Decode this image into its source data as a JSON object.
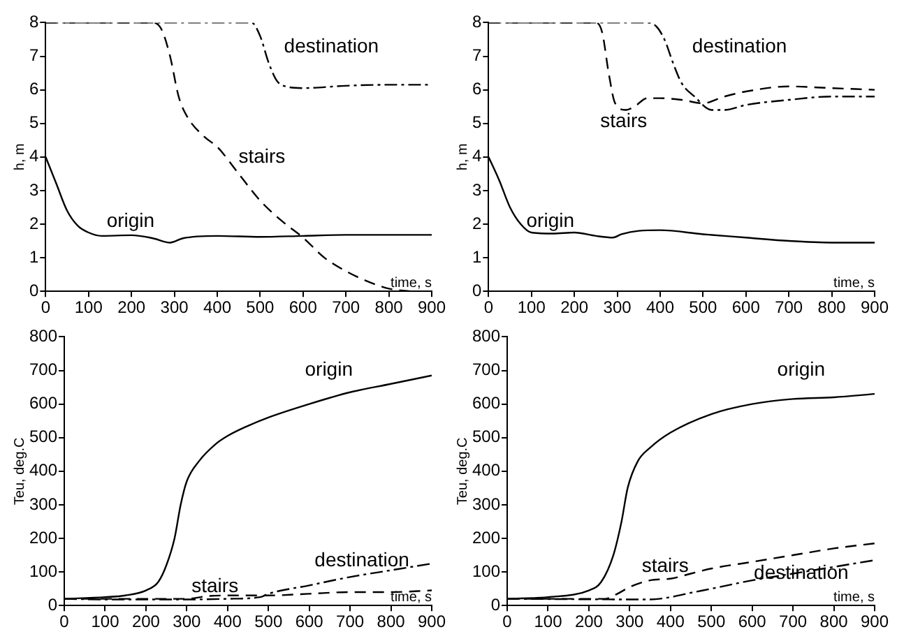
{
  "chart_data": [
    {
      "type": "line",
      "xlabel": "time, s",
      "ylabel": "h, m",
      "xlim": [
        0,
        900
      ],
      "xticks": [
        0,
        100,
        200,
        300,
        400,
        500,
        600,
        700,
        800,
        900
      ],
      "ylim": [
        0,
        8
      ],
      "yticks": [
        0,
        1,
        2,
        3,
        4,
        5,
        6,
        7,
        8
      ],
      "grid": false,
      "legend": false,
      "marker": "none",
      "series": [
        {
          "name": "origin",
          "color": "#000000",
          "line_style": "solid",
          "x": [
            0,
            25,
            50,
            75,
            100,
            130,
            200,
            250,
            290,
            320,
            400,
            500,
            600,
            700,
            900
          ],
          "values": [
            4,
            3.2,
            2.4,
            1.95,
            1.75,
            1.65,
            1.67,
            1.58,
            1.45,
            1.58,
            1.65,
            1.62,
            1.65,
            1.68,
            1.68
          ]
        },
        {
          "name": "stairs",
          "color": "#000000",
          "line_style": "dashed",
          "x": [
            0,
            250,
            270,
            290,
            310,
            330,
            370,
            400,
            450,
            500,
            550,
            600,
            650,
            700,
            750,
            800,
            850
          ],
          "values": [
            8,
            8,
            7.8,
            7,
            5.8,
            5.2,
            4.6,
            4.3,
            3.5,
            2.7,
            2.1,
            1.6,
            1,
            0.6,
            0.3,
            0.08,
            0
          ]
        },
        {
          "name": "destination",
          "color": "#000000",
          "line_style": "dotted",
          "x": [
            0,
            480,
            500,
            520,
            540,
            560,
            600,
            700,
            800,
            900
          ],
          "values": [
            8,
            8,
            7.6,
            6.8,
            6.25,
            6.1,
            6.05,
            6.12,
            6.15,
            6.15
          ]
        }
      ]
    },
    {
      "type": "line",
      "xlabel": "time, s",
      "ylabel": "h, m",
      "xlim": [
        0,
        900
      ],
      "xticks": [
        0,
        100,
        200,
        300,
        400,
        500,
        600,
        700,
        800,
        900
      ],
      "ylim": [
        0,
        8
      ],
      "yticks": [
        0,
        1,
        2,
        3,
        4,
        5,
        6,
        7,
        8
      ],
      "grid": false,
      "legend": false,
      "marker": "none",
      "series": [
        {
          "name": "origin",
          "color": "#000000",
          "line_style": "solid",
          "x": [
            0,
            25,
            50,
            75,
            100,
            150,
            200,
            250,
            290,
            310,
            350,
            400,
            500,
            600,
            700,
            800,
            900
          ],
          "values": [
            4,
            3.3,
            2.5,
            2,
            1.75,
            1.72,
            1.75,
            1.65,
            1.6,
            1.7,
            1.8,
            1.82,
            1.7,
            1.6,
            1.5,
            1.45,
            1.45
          ]
        },
        {
          "name": "stairs",
          "color": "#000000",
          "line_style": "dashed",
          "x": [
            0,
            250,
            265,
            280,
            295,
            320,
            340,
            370,
            400,
            450,
            500,
            550,
            600,
            700,
            800,
            900
          ],
          "values": [
            8,
            8,
            7.7,
            6.5,
            5.6,
            5.4,
            5.5,
            5.75,
            5.75,
            5.7,
            5.6,
            5.8,
            5.95,
            6.1,
            6.05,
            6
          ]
        },
        {
          "name": "destination",
          "color": "#000000",
          "line_style": "dotted",
          "x": [
            0,
            370,
            390,
            410,
            430,
            450,
            480,
            520,
            550,
            600,
            700,
            800,
            900
          ],
          "values": [
            8,
            8,
            7.9,
            7.5,
            6.8,
            6.2,
            5.8,
            5.4,
            5.4,
            5.55,
            5.7,
            5.8,
            5.8
          ]
        }
      ]
    },
    {
      "type": "line",
      "xlabel": "time, s",
      "ylabel": "Teu, deg.C",
      "xlim": [
        0,
        900
      ],
      "xticks": [
        0,
        100,
        200,
        300,
        400,
        500,
        600,
        700,
        800,
        900
      ],
      "ylim": [
        0,
        800
      ],
      "yticks": [
        0,
        100,
        200,
        300,
        400,
        500,
        600,
        700,
        800
      ],
      "grid": false,
      "legend": false,
      "marker": "none",
      "series": [
        {
          "name": "origin",
          "color": "#000000",
          "line_style": "solid",
          "x": [
            0,
            100,
            150,
            200,
            230,
            250,
            270,
            285,
            300,
            330,
            370,
            400,
            450,
            500,
            600,
            700,
            800,
            900
          ],
          "values": [
            20,
            25,
            30,
            45,
            70,
            120,
            200,
            300,
            370,
            430,
            480,
            505,
            535,
            560,
            600,
            635,
            660,
            685
          ]
        },
        {
          "name": "stairs",
          "color": "#000000",
          "line_style": "dashed",
          "x": [
            0,
            300,
            350,
            400,
            480,
            500,
            600,
            700,
            800,
            900
          ],
          "values": [
            20,
            20,
            28,
            30,
            30,
            30,
            35,
            40,
            40,
            45
          ]
        },
        {
          "name": "destination",
          "color": "#000000",
          "line_style": "dotted",
          "x": [
            0,
            100,
            300,
            400,
            480,
            500,
            600,
            700,
            800,
            900
          ],
          "values": [
            20,
            18,
            18,
            20,
            25,
            35,
            60,
            85,
            105,
            125
          ]
        }
      ]
    },
    {
      "type": "line",
      "xlabel": "time, s",
      "ylabel": "Teu, deg.C",
      "xlim": [
        0,
        900
      ],
      "xticks": [
        0,
        100,
        200,
        300,
        400,
        500,
        600,
        700,
        800,
        900
      ],
      "ylim": [
        0,
        800
      ],
      "yticks": [
        0,
        100,
        200,
        300,
        400,
        500,
        600,
        700,
        800
      ],
      "grid": false,
      "legend": false,
      "marker": "none",
      "series": [
        {
          "name": "origin",
          "color": "#000000",
          "line_style": "solid",
          "x": [
            0,
            100,
            200,
            230,
            260,
            280,
            295,
            320,
            350,
            400,
            500,
            600,
            700,
            800,
            900
          ],
          "values": [
            20,
            25,
            45,
            70,
            150,
            250,
            350,
            430,
            470,
            515,
            570,
            600,
            615,
            620,
            630
          ]
        },
        {
          "name": "stairs",
          "color": "#000000",
          "line_style": "dashed",
          "x": [
            0,
            240,
            270,
            300,
            350,
            400,
            450,
            500,
            600,
            700,
            800,
            900
          ],
          "values": [
            20,
            20,
            35,
            55,
            75,
            80,
            95,
            110,
            130,
            150,
            170,
            185
          ]
        },
        {
          "name": "destination",
          "color": "#000000",
          "line_style": "dotted",
          "x": [
            0,
            350,
            400,
            450,
            500,
            600,
            700,
            800,
            900
          ],
          "values": [
            20,
            18,
            25,
            38,
            50,
            75,
            95,
            115,
            135
          ]
        }
      ]
    }
  ]
}
